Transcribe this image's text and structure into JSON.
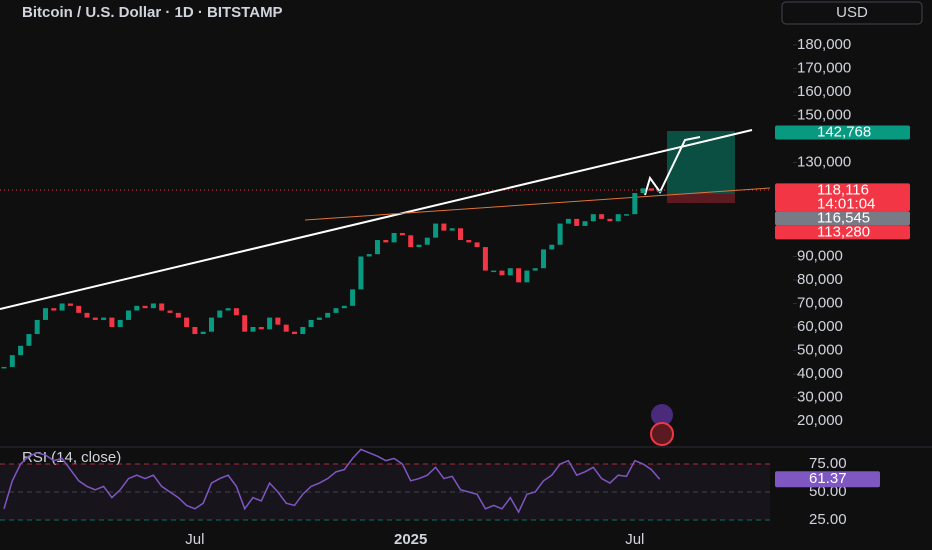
{
  "chart_data": [
    {
      "type": "candlestick",
      "title": "Bitcoin / U.S. Dollar · 1D · BITSTAMP",
      "currency": "USD",
      "categories": [
        null,
        null,
        null,
        null,
        null,
        null,
        null,
        null,
        null,
        null,
        null,
        null,
        null,
        null,
        null,
        null,
        null,
        null,
        null,
        null,
        null,
        null,
        null,
        "Jul",
        null,
        null,
        null,
        null,
        null,
        null,
        null,
        null,
        null,
        null,
        null,
        null,
        null,
        null,
        null,
        null,
        null,
        null,
        null,
        null,
        null,
        null,
        null,
        null,
        null,
        "2025",
        null,
        null,
        null,
        null,
        null,
        null,
        null,
        null,
        null,
        null,
        null,
        null,
        null,
        null,
        null,
        null,
        null,
        null,
        null,
        null,
        null,
        null,
        null,
        null,
        null,
        null,
        "Jul",
        null,
        null,
        null
      ],
      "values": [
        43000,
        48000,
        52000,
        57000,
        63000,
        68000,
        67000,
        70000,
        69000,
        66000,
        64000,
        63000,
        64000,
        60000,
        63000,
        67000,
        69000,
        68000,
        70000,
        67000,
        66000,
        64000,
        60000,
        57000,
        58000,
        64000,
        67000,
        68000,
        65000,
        58000,
        60000,
        59000,
        64000,
        61000,
        58000,
        57000,
        60000,
        63000,
        64000,
        66000,
        68000,
        69000,
        76000,
        90000,
        91000,
        97000,
        96000,
        100000,
        99000,
        94000,
        95000,
        98000,
        104000,
        101000,
        102000,
        97000,
        96000,
        94000,
        84000,
        84000,
        82000,
        85000,
        79000,
        84000,
        85000,
        93000,
        95000,
        104000,
        106000,
        103000,
        105000,
        108000,
        106000,
        105000,
        108000,
        108000,
        117000,
        119000,
        118000,
        118000
      ],
      "up_color": "#089981",
      "down_color": "#f23645",
      "ylim": [
        10000,
        199000
      ],
      "yticks": [
        {
          "value": 180000,
          "label": "180,000"
        },
        {
          "value": 170000,
          "label": "170,000"
        },
        {
          "value": 160000,
          "label": "160,000"
        },
        {
          "value": 150000,
          "label": "150,000"
        },
        {
          "value": 130000,
          "label": "130,000"
        },
        {
          "value": 90000,
          "label": "90,000"
        },
        {
          "value": 80000,
          "label": "80,000"
        },
        {
          "value": 70000,
          "label": "70,000"
        },
        {
          "value": 60000,
          "label": "60,000"
        },
        {
          "value": 50000,
          "label": "50,000"
        },
        {
          "value": 40000,
          "label": "40,000"
        },
        {
          "value": 30000,
          "label": "30,000"
        },
        {
          "value": 20000,
          "label": "20,000"
        }
      ],
      "price_labels": [
        {
          "value": 142768,
          "label": "142,768",
          "color": "#089981"
        },
        {
          "value": 118116,
          "label": "118,116",
          "color": "#f23645"
        },
        {
          "value": 116545,
          "label": "116,545",
          "color": "#787b86"
        },
        {
          "value": 113280,
          "label": "113,280",
          "color": "#f23645"
        }
      ],
      "countdown": "14:01:04"
    },
    {
      "type": "line",
      "title": "RSI (14, close)",
      "color": "#7e57c2",
      "values": [
        35,
        60,
        75,
        82,
        85,
        83,
        78,
        80,
        70,
        60,
        55,
        52,
        55,
        45,
        52,
        62,
        65,
        62,
        65,
        55,
        50,
        45,
        38,
        35,
        40,
        58,
        62,
        65,
        55,
        35,
        45,
        42,
        58,
        50,
        40,
        38,
        48,
        55,
        58,
        62,
        68,
        70,
        80,
        88,
        85,
        82,
        78,
        80,
        75,
        60,
        62,
        65,
        72,
        62,
        64,
        52,
        50,
        48,
        35,
        38,
        35,
        45,
        32,
        48,
        50,
        60,
        65,
        75,
        78,
        65,
        68,
        72,
        62,
        58,
        65,
        64,
        78,
        75,
        70,
        61.37
      ],
      "ylim": [
        20,
        85
      ],
      "yticks": [
        {
          "value": 75,
          "label": "75.00"
        },
        {
          "value": 50,
          "label": "50.00"
        },
        {
          "value": 25,
          "label": "25.00"
        }
      ],
      "last_value": {
        "value": 61.37,
        "label": "61.37"
      }
    }
  ]
}
